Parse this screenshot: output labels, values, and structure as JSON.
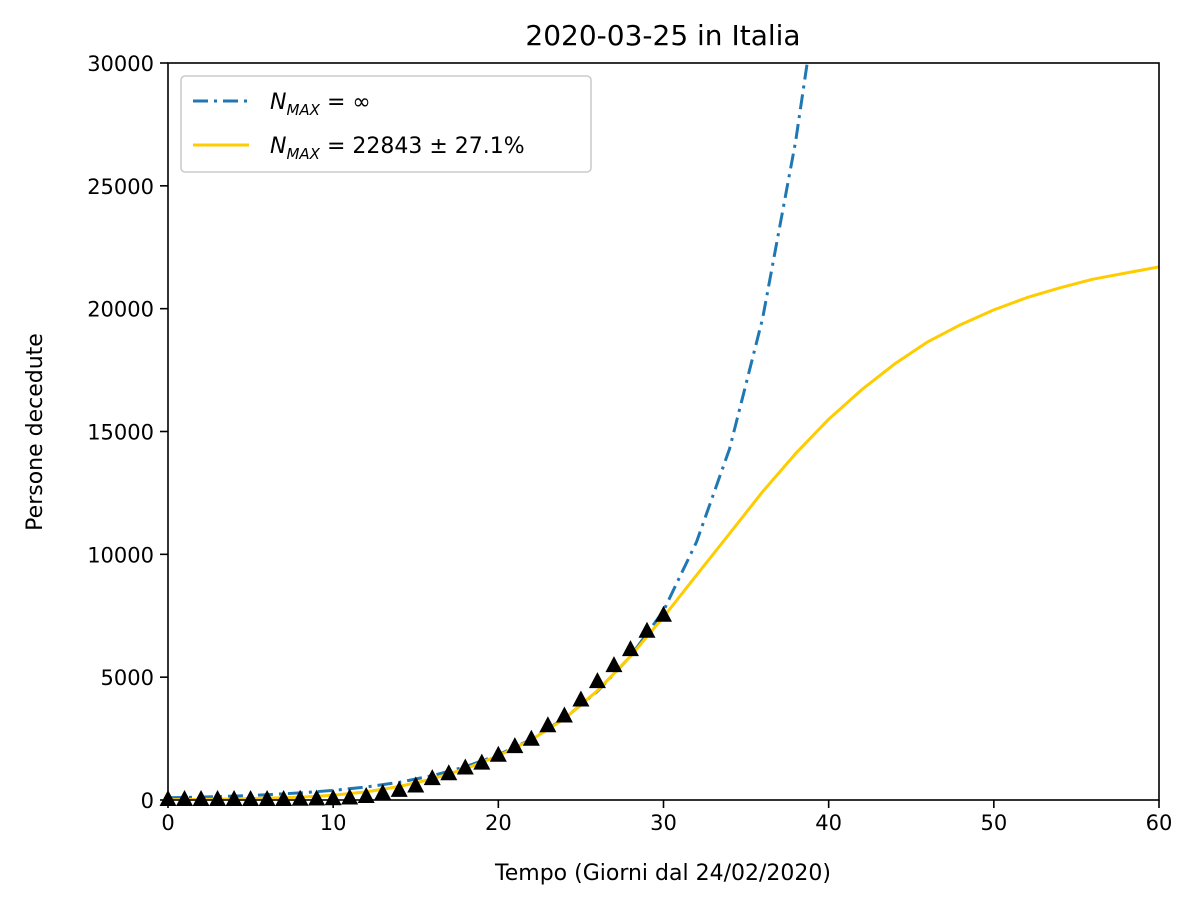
{
  "chart_data": {
    "type": "line",
    "title": "2020-03-25 in Italia",
    "xlabel": "Tempo (Giorni dal 24/02/2020)",
    "ylabel": "Persone decedute",
    "xlim": [
      0,
      60
    ],
    "ylim": [
      0,
      30000
    ],
    "xticks": [
      "0",
      "10",
      "20",
      "30",
      "40",
      "50",
      "60"
    ],
    "yticks": [
      "0",
      "5000",
      "10000",
      "15000",
      "20000",
      "25000",
      "30000"
    ],
    "grid": false,
    "legend_position": "top-left",
    "legend": [
      {
        "label_main": "N",
        "label_sub": "MAX",
        "label_rest": " = ∞"
      },
      {
        "label_main": "N",
        "label_sub": "MAX",
        "label_rest": " = 22843 ± 27.1%"
      }
    ],
    "series": [
      {
        "style": "dashdot",
        "color": "#1f77b4",
        "x": [
          0,
          2,
          4,
          6,
          8,
          10,
          12,
          14,
          16,
          18,
          20,
          22,
          24,
          26,
          28,
          30,
          32,
          34,
          36,
          38,
          38.7
        ],
        "y": [
          90,
          120,
          160,
          215,
          290,
          390,
          530,
          720,
          990,
          1350,
          1830,
          2470,
          3320,
          4420,
          5850,
          7700,
          10500,
          14300,
          19600,
          26800,
          30000
        ]
      },
      {
        "style": "solid",
        "color": "#ffcc00",
        "x": [
          0,
          4,
          8,
          10,
          12,
          14,
          16,
          18,
          20,
          22,
          24,
          26,
          28,
          30,
          32,
          34,
          36,
          38,
          40,
          42,
          44,
          46,
          48,
          50,
          52,
          54,
          56,
          58,
          60
        ],
        "y": [
          10,
          40,
          110,
          190,
          330,
          550,
          860,
          1270,
          1800,
          2450,
          3300,
          4450,
          5850,
          7450,
          9150,
          10850,
          12550,
          14100,
          15500,
          16700,
          17750,
          18650,
          19350,
          19950,
          20450,
          20850,
          21200,
          21450,
          21700
        ]
      },
      {
        "style": "markers",
        "marker": "triangle",
        "color": "#000000",
        "x": [
          0,
          1,
          2,
          3,
          4,
          5,
          6,
          7,
          8,
          9,
          10,
          11,
          12,
          13,
          14,
          15,
          16,
          17,
          18,
          19,
          20,
          21,
          22,
          23,
          24,
          25,
          26,
          27,
          28,
          29,
          30
        ],
        "y": [
          0,
          0,
          0,
          0,
          0,
          0,
          0,
          0,
          10,
          20,
          30,
          60,
          120,
          250,
          370,
          550,
          850,
          1050,
          1280,
          1480,
          1800,
          2150,
          2450,
          3000,
          3400,
          4050,
          4800,
          5450,
          6100,
          6850,
          7500
        ]
      }
    ]
  }
}
